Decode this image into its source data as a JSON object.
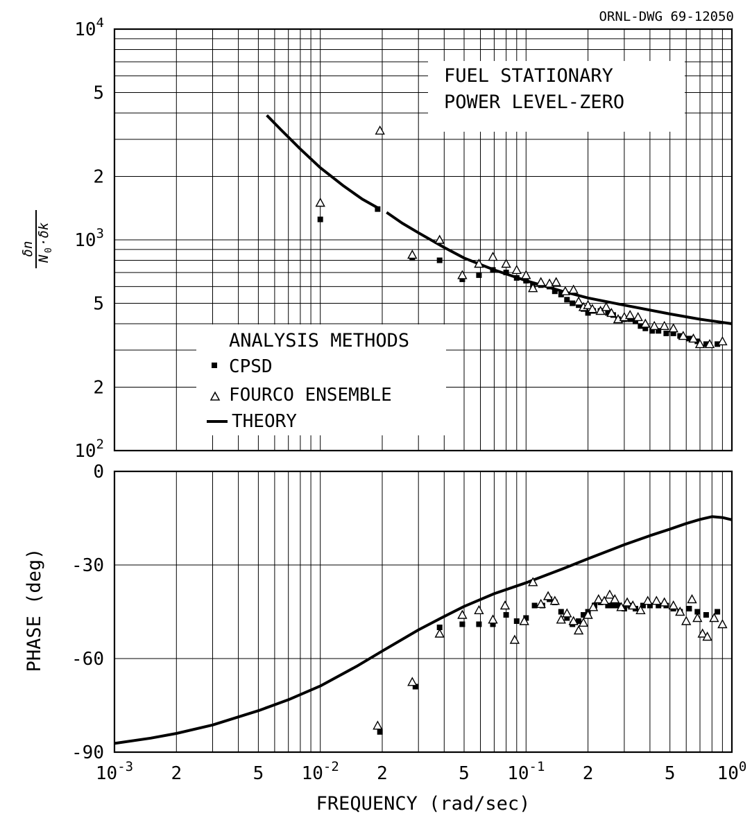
{
  "drawing_number": "ORNL-DWG 69-12050",
  "chart_data": [
    {
      "type": "scatter",
      "subtitle_lines": [
        "FUEL STATIONARY",
        "POWER LEVEL-ZERO"
      ],
      "y_scale": "log",
      "x_scale": "log",
      "ylim": [
        100,
        10000
      ],
      "xlim": [
        0.001,
        1.0
      ],
      "y_ticks": [
        {
          "value": 100,
          "mant": "10",
          "exp": "2"
        },
        {
          "value": 200,
          "mant": "2",
          "exp": ""
        },
        {
          "value": 500,
          "mant": "5",
          "exp": ""
        },
        {
          "value": 1000,
          "mant": "10",
          "exp": "3"
        },
        {
          "value": 2000,
          "mant": "2",
          "exp": ""
        },
        {
          "value": 5000,
          "mant": "5",
          "exp": ""
        },
        {
          "value": 10000,
          "mant": "10",
          "exp": "4"
        }
      ],
      "legend": {
        "title": "ANALYSIS METHODS",
        "entries": [
          {
            "marker": "square",
            "label": "CPSD"
          },
          {
            "marker": "triangle",
            "label": "FOURCO ENSEMBLE"
          },
          {
            "marker": "line",
            "label": "THEORY"
          }
        ]
      },
      "series": [
        {
          "name": "CPSD",
          "marker": "square",
          "points": [
            [
              0.01,
              1250
            ],
            [
              0.019,
              1400
            ],
            [
              0.028,
              820
            ],
            [
              0.038,
              800
            ],
            [
              0.049,
              650
            ],
            [
              0.059,
              680
            ],
            [
              0.069,
              720
            ],
            [
              0.08,
              700
            ],
            [
              0.09,
              660
            ],
            [
              0.1,
              640
            ],
            [
              0.108,
              610
            ],
            [
              0.118,
              610
            ],
            [
              0.13,
              600
            ],
            [
              0.138,
              570
            ],
            [
              0.148,
              550
            ],
            [
              0.158,
              520
            ],
            [
              0.168,
              500
            ],
            [
              0.18,
              490
            ],
            [
              0.19,
              470
            ],
            [
              0.2,
              450
            ],
            [
              0.212,
              460
            ],
            [
              0.23,
              460
            ],
            [
              0.25,
              450
            ],
            [
              0.265,
              440
            ],
            [
              0.28,
              420
            ],
            [
              0.3,
              420
            ],
            [
              0.32,
              420
            ],
            [
              0.34,
              410
            ],
            [
              0.36,
              390
            ],
            [
              0.38,
              380
            ],
            [
              0.41,
              370
            ],
            [
              0.44,
              370
            ],
            [
              0.48,
              360
            ],
            [
              0.52,
              360
            ],
            [
              0.56,
              350
            ],
            [
              0.62,
              340
            ],
            [
              0.68,
              330
            ],
            [
              0.75,
              320
            ],
            [
              0.85,
              320
            ]
          ]
        },
        {
          "name": "FOURCO ENSEMBLE",
          "marker": "triangle",
          "points": [
            [
              0.01,
              1500
            ],
            [
              0.0195,
              3300
            ],
            [
              0.028,
              850
            ],
            [
              0.038,
              1000
            ],
            [
              0.049,
              680
            ],
            [
              0.059,
              770
            ],
            [
              0.069,
              830
            ],
            [
              0.08,
              770
            ],
            [
              0.09,
              720
            ],
            [
              0.1,
              680
            ],
            [
              0.108,
              590
            ],
            [
              0.118,
              630
            ],
            [
              0.13,
              620
            ],
            [
              0.14,
              630
            ],
            [
              0.155,
              570
            ],
            [
              0.17,
              580
            ],
            [
              0.18,
              510
            ],
            [
              0.19,
              480
            ],
            [
              0.2,
              490
            ],
            [
              0.21,
              470
            ],
            [
              0.23,
              460
            ],
            [
              0.245,
              480
            ],
            [
              0.26,
              450
            ],
            [
              0.28,
              420
            ],
            [
              0.3,
              430
            ],
            [
              0.32,
              440
            ],
            [
              0.35,
              430
            ],
            [
              0.38,
              400
            ],
            [
              0.42,
              390
            ],
            [
              0.47,
              390
            ],
            [
              0.52,
              380
            ],
            [
              0.58,
              350
            ],
            [
              0.65,
              340
            ],
            [
              0.7,
              320
            ],
            [
              0.78,
              320
            ],
            [
              0.9,
              330
            ]
          ]
        },
        {
          "name": "THEORY",
          "marker": "line",
          "segments": [
            [
              [
                0.0055,
                3900
              ],
              [
                0.0065,
                3300
              ],
              [
                0.008,
                2700
              ],
              [
                0.01,
                2200
              ],
              [
                0.013,
                1800
              ],
              [
                0.016,
                1560
              ],
              [
                0.019,
                1420
              ]
            ],
            [
              [
                0.021,
                1350
              ],
              [
                0.025,
                1200
              ],
              [
                0.03,
                1080
              ],
              [
                0.04,
                920
              ],
              [
                0.05,
                820
              ],
              [
                0.07,
                720
              ],
              [
                0.1,
                640
              ],
              [
                0.15,
                570
              ],
              [
                0.2,
                530
              ],
              [
                0.3,
                490
              ],
              [
                0.5,
                445
              ],
              [
                0.7,
                420
              ],
              [
                1.0,
                400
              ]
            ]
          ]
        }
      ]
    },
    {
      "type": "scatter",
      "xlabel": "FREQUENCY (rad/sec)",
      "ylabel": "PHASE (deg)",
      "x_scale": "log",
      "xlim": [
        0.001,
        1.0
      ],
      "ylim": [
        -90,
        0
      ],
      "y_ticks": [
        {
          "value": 0,
          "label": "0"
        },
        {
          "value": -30,
          "label": "-30"
        },
        {
          "value": -60,
          "label": "-60"
        },
        {
          "value": -90,
          "label": "-90"
        }
      ],
      "x_ticks": [
        {
          "value": 0.001,
          "mant": "10",
          "exp": "-3"
        },
        {
          "value": 0.002,
          "mant": "2",
          "exp": ""
        },
        {
          "value": 0.005,
          "mant": "5",
          "exp": ""
        },
        {
          "value": 0.01,
          "mant": "10",
          "exp": "-2"
        },
        {
          "value": 0.02,
          "mant": "2",
          "exp": ""
        },
        {
          "value": 0.05,
          "mant": "5",
          "exp": ""
        },
        {
          "value": 0.1,
          "mant": "10",
          "exp": "-1"
        },
        {
          "value": 0.2,
          "mant": "2",
          "exp": ""
        },
        {
          "value": 0.5,
          "mant": "5",
          "exp": ""
        },
        {
          "value": 1.0,
          "mant": "10",
          "exp": "0"
        }
      ],
      "series": [
        {
          "name": "CPSD",
          "marker": "square",
          "points": [
            [
              0.0195,
              -83.5
            ],
            [
              0.029,
              -69
            ],
            [
              0.038,
              -50
            ],
            [
              0.049,
              -49
            ],
            [
              0.059,
              -49
            ],
            [
              0.069,
              -49
            ],
            [
              0.08,
              -46
            ],
            [
              0.09,
              -48
            ],
            [
              0.1,
              -47
            ],
            [
              0.11,
              -43
            ],
            [
              0.12,
              -43
            ],
            [
              0.13,
              -41
            ],
            [
              0.138,
              -42
            ],
            [
              0.148,
              -45
            ],
            [
              0.158,
              -47
            ],
            [
              0.168,
              -49
            ],
            [
              0.18,
              -48
            ],
            [
              0.19,
              -46
            ],
            [
              0.2,
              -45
            ],
            [
              0.215,
              -43
            ],
            [
              0.23,
              -42
            ],
            [
              0.25,
              -43
            ],
            [
              0.265,
              -43
            ],
            [
              0.28,
              -43
            ],
            [
              0.3,
              -44
            ],
            [
              0.32,
              -43
            ],
            [
              0.34,
              -44
            ],
            [
              0.37,
              -43
            ],
            [
              0.4,
              -43
            ],
            [
              0.44,
              -43
            ],
            [
              0.48,
              -43
            ],
            [
              0.52,
              -44
            ],
            [
              0.56,
              -45
            ],
            [
              0.62,
              -44
            ],
            [
              0.68,
              -45
            ],
            [
              0.75,
              -46
            ],
            [
              0.85,
              -45
            ]
          ]
        },
        {
          "name": "FOURCO ENSEMBLE",
          "marker": "triangle",
          "points": [
            [
              0.019,
              -81.5
            ],
            [
              0.028,
              -67.5
            ],
            [
              0.038,
              -52
            ],
            [
              0.049,
              -46
            ],
            [
              0.059,
              -44.5
            ],
            [
              0.069,
              -47.5
            ],
            [
              0.079,
              -43
            ],
            [
              0.088,
              -54
            ],
            [
              0.098,
              -48
            ],
            [
              0.108,
              -35.5
            ],
            [
              0.118,
              -42.5
            ],
            [
              0.128,
              -40
            ],
            [
              0.138,
              -41.5
            ],
            [
              0.148,
              -47.5
            ],
            [
              0.158,
              -45.5
            ],
            [
              0.17,
              -48
            ],
            [
              0.18,
              -51
            ],
            [
              0.19,
              -48.5
            ],
            [
              0.2,
              -46
            ],
            [
              0.212,
              -43.5
            ],
            [
              0.225,
              -41
            ],
            [
              0.24,
              -41.5
            ],
            [
              0.255,
              -39.5
            ],
            [
              0.27,
              -41
            ],
            [
              0.29,
              -43.5
            ],
            [
              0.31,
              -42
            ],
            [
              0.33,
              -43
            ],
            [
              0.36,
              -44.5
            ],
            [
              0.39,
              -41.5
            ],
            [
              0.43,
              -41.5
            ],
            [
              0.47,
              -42
            ],
            [
              0.52,
              -43
            ],
            [
              0.56,
              -45
            ],
            [
              0.6,
              -48
            ],
            [
              0.64,
              -41
            ],
            [
              0.68,
              -47
            ],
            [
              0.72,
              -52
            ],
            [
              0.76,
              -53
            ],
            [
              0.82,
              -47
            ],
            [
              0.9,
              -49
            ]
          ]
        },
        {
          "name": "THEORY",
          "marker": "line",
          "points": [
            [
              0.001,
              -87.2
            ],
            [
              0.0015,
              -85.5
            ],
            [
              0.002,
              -84
            ],
            [
              0.003,
              -81.3
            ],
            [
              0.005,
              -76.7
            ],
            [
              0.007,
              -73.2
            ],
            [
              0.01,
              -68.8
            ],
            [
              0.015,
              -62.5
            ],
            [
              0.02,
              -57.6
            ],
            [
              0.03,
              -50.8
            ],
            [
              0.04,
              -46.5
            ],
            [
              0.05,
              -43.3
            ],
            [
              0.07,
              -39.2
            ],
            [
              0.1,
              -35.7
            ],
            [
              0.15,
              -31.3
            ],
            [
              0.2,
              -28
            ],
            [
              0.3,
              -23.5
            ],
            [
              0.4,
              -20.6
            ],
            [
              0.5,
              -18.5
            ],
            [
              0.6,
              -16.7
            ],
            [
              0.7,
              -15.4
            ],
            [
              0.8,
              -14.5
            ],
            [
              0.9,
              -14.8
            ],
            [
              1.0,
              -15.5
            ]
          ]
        }
      ]
    }
  ]
}
